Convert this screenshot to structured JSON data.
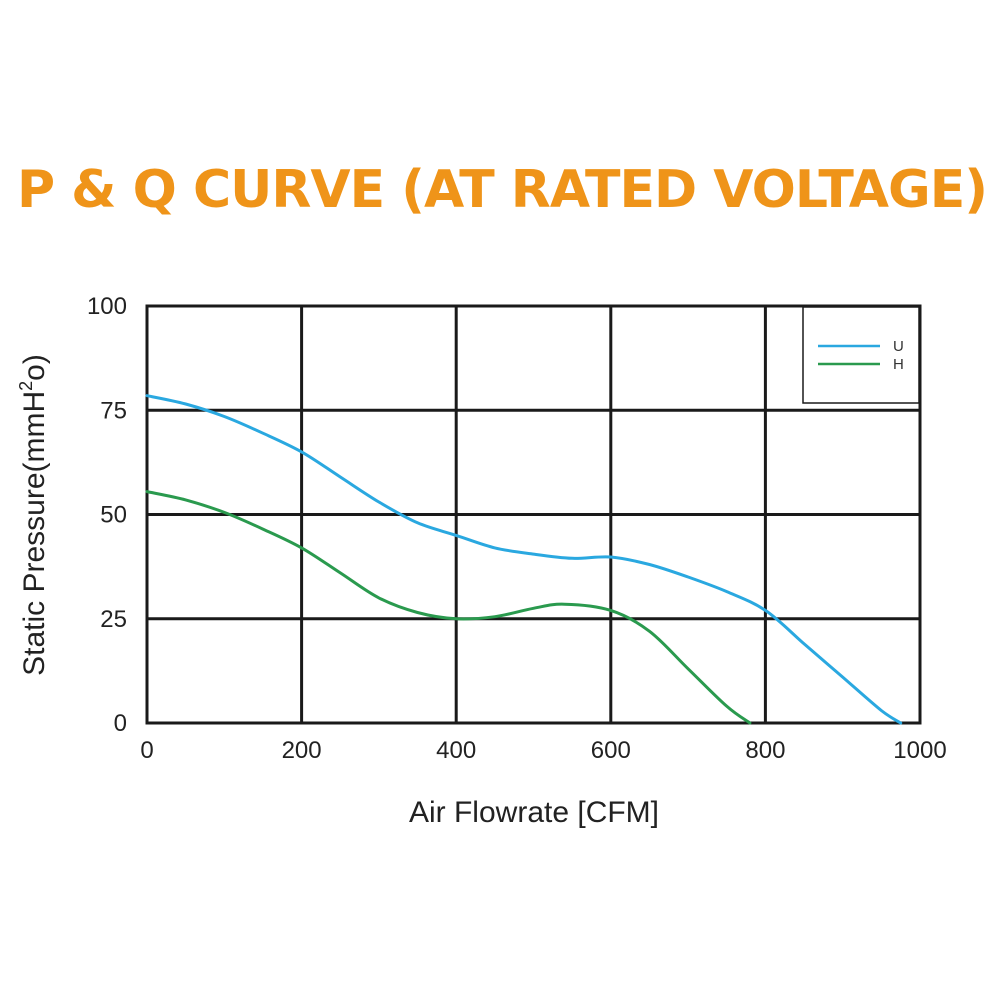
{
  "chart_data": {
    "type": "line",
    "title": "P & Q CURVE (AT RATED VOLTAGE)",
    "xlabel": "Air  Flowrate   [CFM]",
    "ylabel_text": "Static Pressure(mmH",
    "ylabel_sup": "2",
    "ylabel_end": "o)",
    "xlim": [
      0,
      1000
    ],
    "ylim": [
      0,
      100
    ],
    "xticks": [
      0,
      200,
      400,
      600,
      800,
      1000
    ],
    "xtick_labels": [
      "0",
      "200",
      "400",
      "600",
      "800",
      "1000"
    ],
    "yticks": [
      0,
      25,
      50,
      75,
      100
    ],
    "ytick_labels": [
      "0",
      "25",
      "50",
      "75",
      "100"
    ],
    "grid": true,
    "legend_position": "top-right",
    "series": [
      {
        "name": "U",
        "color": "#2aa8e0",
        "points": [
          [
            0,
            78.5
          ],
          [
            50,
            76.5
          ],
          [
            100,
            73.5
          ],
          [
            150,
            69.5
          ],
          [
            200,
            65
          ],
          [
            250,
            59
          ],
          [
            300,
            53
          ],
          [
            350,
            48
          ],
          [
            400,
            45
          ],
          [
            450,
            42
          ],
          [
            500,
            40.5
          ],
          [
            550,
            39.5
          ],
          [
            600,
            39.8
          ],
          [
            650,
            38
          ],
          [
            700,
            35
          ],
          [
            750,
            31.5
          ],
          [
            800,
            27
          ],
          [
            850,
            19
          ],
          [
            900,
            11
          ],
          [
            950,
            3
          ],
          [
            975,
            0
          ]
        ]
      },
      {
        "name": "H",
        "color": "#2a9a4e",
        "points": [
          [
            0,
            55.5
          ],
          [
            50,
            53.5
          ],
          [
            100,
            50.5
          ],
          [
            150,
            46.5
          ],
          [
            200,
            42
          ],
          [
            250,
            36
          ],
          [
            300,
            30
          ],
          [
            350,
            26.5
          ],
          [
            400,
            25
          ],
          [
            450,
            25.5
          ],
          [
            500,
            27.5
          ],
          [
            540,
            28.5
          ],
          [
            600,
            27
          ],
          [
            650,
            22
          ],
          [
            700,
            13
          ],
          [
            750,
            4
          ],
          [
            780,
            0
          ]
        ]
      }
    ]
  }
}
